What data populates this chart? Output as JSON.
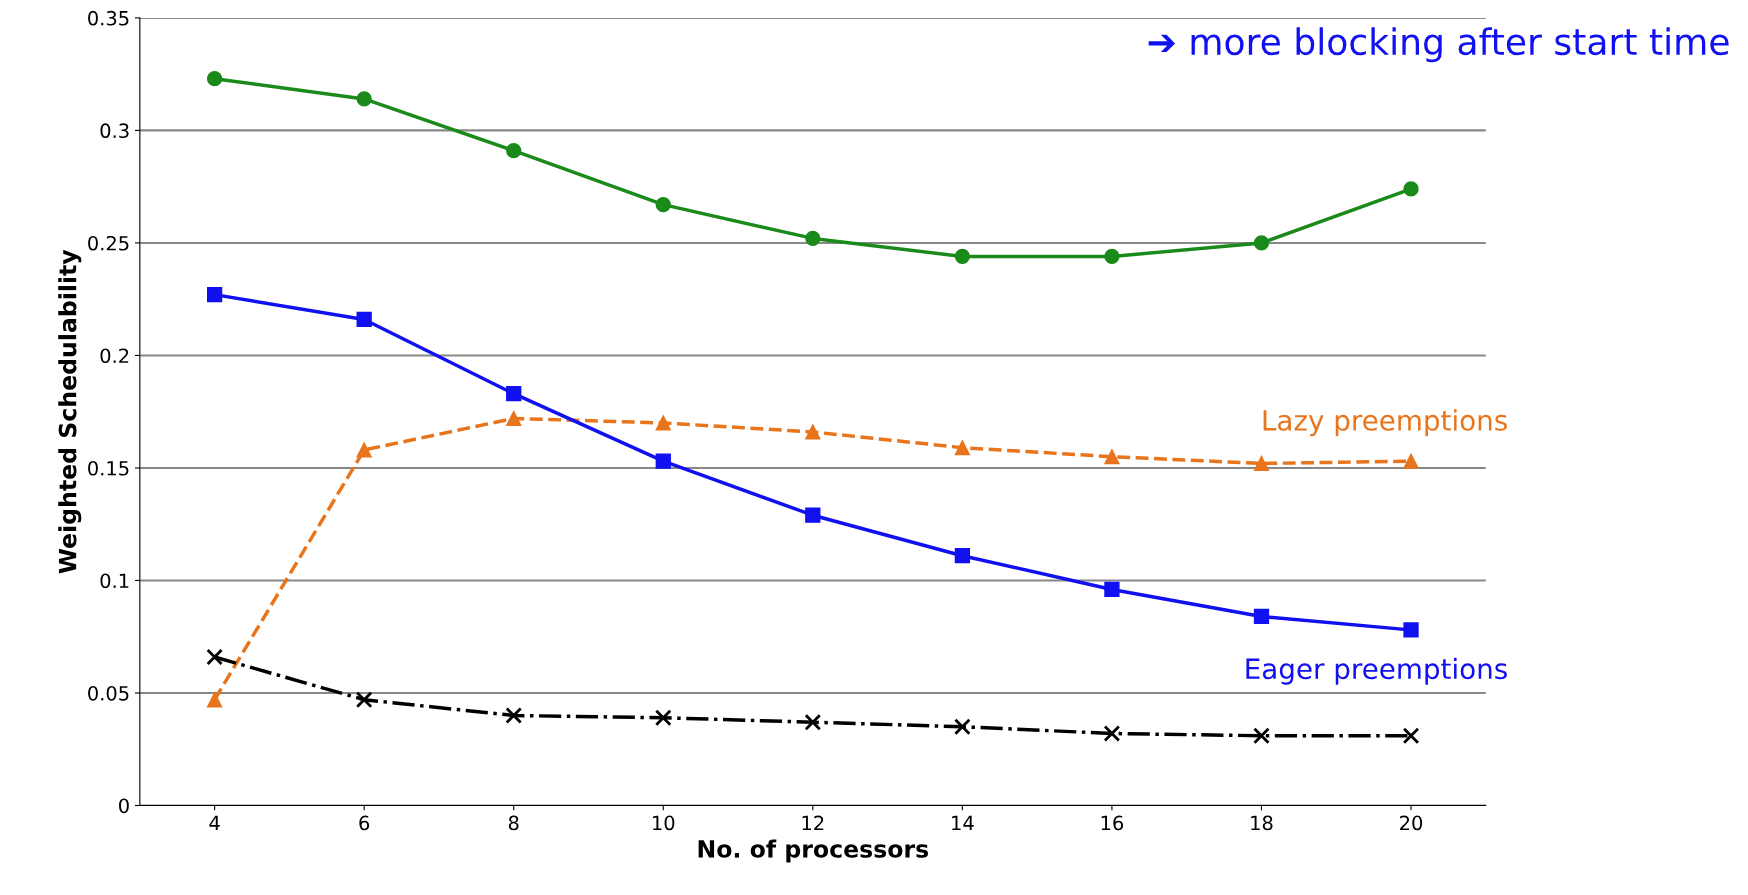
{
  "chart_data": {
    "type": "line",
    "xlabel": "No. of processors",
    "ylabel": "Weighted Schedulability",
    "categories": [
      "4",
      "6",
      "8",
      "10",
      "12",
      "14",
      "16",
      "18",
      "20"
    ],
    "series": [
      {
        "color": "#1a8a1a",
        "marker": "circle",
        "line_style": "solid",
        "values": [
          0.323,
          0.314,
          0.291,
          0.267,
          0.252,
          0.244,
          0.244,
          0.25,
          0.274
        ]
      },
      {
        "name": "Lazy preemptions",
        "color": "#e8741c",
        "marker": "triangle",
        "line_style": "dashed",
        "values": [
          0.047,
          0.158,
          0.172,
          0.17,
          0.166,
          0.159,
          0.155,
          0.152,
          0.153
        ]
      },
      {
        "name": "Eager preemptions",
        "color": "#1010f0",
        "marker": "square",
        "line_style": "solid",
        "values": [
          0.227,
          0.216,
          0.183,
          0.153,
          0.129,
          0.111,
          0.096,
          0.084,
          0.078
        ]
      },
      {
        "color": "#000000",
        "marker": "cross",
        "line_style": "dashdot",
        "values": [
          0.066,
          0.047,
          0.04,
          0.039,
          0.037,
          0.035,
          0.032,
          0.031,
          0.031
        ]
      }
    ],
    "ylim": [
      0,
      0.35
    ],
    "yticks": [
      0,
      0.05,
      0.1,
      0.15,
      0.2,
      0.25,
      0.3,
      0.35
    ],
    "grid": "y",
    "legend": false,
    "annotations": [
      "➔ more blocking after start time"
    ]
  }
}
